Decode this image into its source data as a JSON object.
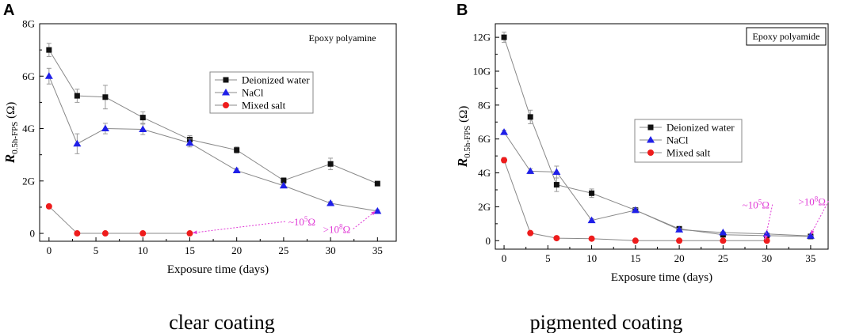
{
  "panel_letters": [
    "A",
    "B"
  ],
  "captions": [
    "clear coating",
    "pigmented coating"
  ],
  "colors": {
    "water": "#111111",
    "nacl": "#1f1fe8",
    "salt": "#ee1c1c",
    "annotation": "#e03ad6",
    "line": "#888888"
  },
  "chart_data": [
    {
      "type": "line",
      "panel": "A",
      "box_label": "Epoxy polyamine",
      "xlabel": "Exposure time (days)",
      "ylabel_main": "R",
      "ylabel_sub": "0.5h-FPS",
      "ylabel_unit": " (Ω)",
      "xlim": [
        -1,
        37
      ],
      "ylim": [
        -0.3,
        8
      ],
      "x_ticks": [
        0,
        5,
        10,
        15,
        20,
        25,
        30,
        35
      ],
      "y_ticks": [
        0,
        2,
        4,
        6,
        8
      ],
      "y_tick_labels": [
        "0",
        "2G",
        "4G",
        "6G",
        "8G"
      ],
      "legend_position": "upper-middle",
      "series": [
        {
          "name": "Deionized water",
          "marker": "square",
          "color": "#111111",
          "x": [
            0,
            3,
            6,
            10,
            15,
            20,
            25,
            30,
            35
          ],
          "y": [
            7.0,
            5.25,
            5.2,
            4.42,
            3.58,
            3.18,
            2.02,
            2.65,
            1.9
          ],
          "err": [
            0.25,
            0.25,
            0.45,
            0.22,
            0.15,
            0.12,
            0.1,
            0.22,
            0.08
          ]
        },
        {
          "name": "NaCl",
          "marker": "triangle",
          "color": "#1f1fe8",
          "x": [
            0,
            3,
            6,
            10,
            15,
            20,
            25,
            30,
            35
          ],
          "y": [
            6.0,
            3.42,
            4.0,
            3.97,
            3.45,
            2.4,
            1.82,
            1.15,
            0.85
          ],
          "err": [
            0.3,
            0.38,
            0.2,
            0.2,
            0.15,
            0.08,
            0.06,
            0.06,
            0.05
          ]
        },
        {
          "name": "Mixed salt",
          "marker": "circle",
          "color": "#ee1c1c",
          "x": [
            0,
            3,
            6,
            10,
            15
          ],
          "y": [
            1.03,
            0.0,
            0.0,
            0.0,
            0.0
          ],
          "err": [
            0,
            0,
            0,
            0,
            0
          ]
        }
      ],
      "annotations": [
        {
          "base": "~10",
          "exp": "5",
          "unit": "Ω",
          "label_x": 25.5,
          "label_y": 0.3,
          "arrow_to_x": 15.3,
          "arrow_to_y": 0.02
        },
        {
          "base": ">10",
          "exp": "8",
          "unit": "Ω",
          "label_x": 29.2,
          "label_y": 0.02,
          "arrow_to_x": 34.8,
          "arrow_to_y": 0.85
        }
      ]
    },
    {
      "type": "line",
      "panel": "B",
      "box_label": "Epoxy polyamide",
      "xlabel": "Exposure time (days)",
      "ylabel_main": "R",
      "ylabel_sub": "0.5h-FPS",
      "ylabel_unit": " (Ω)",
      "xlim": [
        -1,
        37
      ],
      "ylim": [
        -0.5,
        12.8
      ],
      "x_ticks": [
        0,
        5,
        10,
        15,
        20,
        25,
        30,
        35
      ],
      "y_ticks": [
        0,
        2,
        4,
        6,
        8,
        10,
        12
      ],
      "y_tick_labels": [
        "0",
        "2G",
        "4G",
        "6G",
        "8G",
        "10G",
        "12G"
      ],
      "legend_position": "center-left",
      "series": [
        {
          "name": "Deionized water",
          "marker": "square",
          "color": "#111111",
          "x": [
            0,
            3,
            6,
            10,
            15,
            20,
            25,
            30,
            35
          ],
          "y": [
            12.0,
            7.3,
            3.3,
            2.8,
            1.8,
            0.7,
            0.35,
            0.3,
            0.25
          ],
          "err": [
            0.3,
            0.4,
            0.4,
            0.25,
            0.12,
            0.1,
            0.06,
            0.06,
            0.05
          ]
        },
        {
          "name": "NaCl",
          "marker": "triangle",
          "color": "#1f1fe8",
          "x": [
            0,
            3,
            6,
            10,
            15,
            20,
            25,
            30,
            35
          ],
          "y": [
            6.4,
            4.1,
            4.05,
            1.2,
            1.8,
            0.65,
            0.48,
            0.4,
            0.28
          ],
          "err": [
            0.12,
            0.15,
            0.35,
            0.1,
            0.1,
            0.08,
            0.05,
            0.05,
            0.04
          ]
        },
        {
          "name": "Mixed salt",
          "marker": "circle",
          "color": "#ee1c1c",
          "x": [
            0,
            3,
            6,
            10,
            15,
            20,
            25,
            30
          ],
          "y": [
            4.75,
            0.45,
            0.15,
            0.12,
            0.0,
            0.0,
            0.0,
            0.0
          ],
          "err": [
            0.15,
            0,
            0,
            0,
            0,
            0,
            0,
            0
          ]
        }
      ],
      "annotations": [
        {
          "base": "~10",
          "exp": "5",
          "unit": "Ω",
          "label_x": 27.2,
          "label_y": 1.9,
          "arrow_to_x": 29.8,
          "arrow_to_y": 0.05
        },
        {
          "base": ">10",
          "exp": "8",
          "unit": "Ω",
          "label_x": 33.6,
          "label_y": 2.1,
          "arrow_to_x": 35.0,
          "arrow_to_y": 0.35
        }
      ]
    }
  ]
}
